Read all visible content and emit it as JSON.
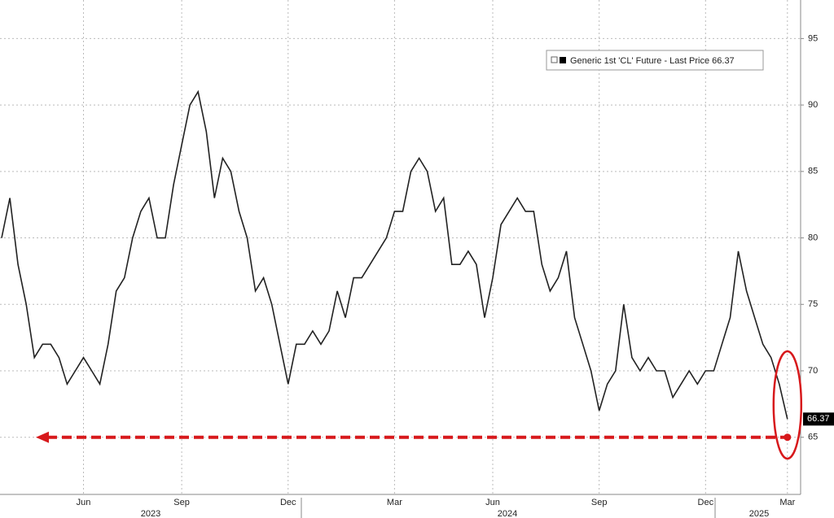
{
  "chart_data": {
    "type": "line",
    "categories": [
      null,
      null,
      null,
      null,
      null,
      null,
      null,
      null,
      null,
      null,
      "Jun",
      null,
      null,
      null,
      null,
      null,
      null,
      null,
      null,
      null,
      null,
      null,
      "Sep",
      null,
      null,
      null,
      null,
      null,
      null,
      null,
      null,
      null,
      null,
      null,
      null,
      "Dec",
      null,
      null,
      null,
      null,
      null,
      null,
      null,
      null,
      null,
      null,
      null,
      null,
      "Mar",
      null,
      null,
      null,
      null,
      null,
      null,
      null,
      null,
      null,
      null,
      null,
      "Jun",
      null,
      null,
      null,
      null,
      null,
      null,
      null,
      null,
      null,
      null,
      null,
      null,
      "Sep",
      null,
      null,
      null,
      null,
      null,
      null,
      null,
      null,
      null,
      null,
      null,
      null,
      "Dec",
      null,
      null,
      null,
      null,
      null,
      null,
      null,
      null,
      null,
      "Mar"
    ],
    "years": [
      "2023",
      "2024",
      "2025"
    ],
    "series": [
      {
        "name": "Generic 1st 'CL' Future - Last Price 66.37",
        "color": "#222222",
        "values": [
          80,
          83,
          78,
          75,
          71,
          72,
          72,
          71,
          69,
          70,
          71,
          70,
          69,
          72,
          76,
          77,
          80,
          82,
          83,
          80,
          80,
          84,
          87,
          90,
          91,
          88,
          83,
          86,
          85,
          82,
          80,
          76,
          77,
          75,
          72,
          69,
          72,
          72,
          73,
          72,
          73,
          76,
          74,
          77,
          77,
          78,
          79,
          80,
          82,
          82,
          85,
          86,
          85,
          82,
          83,
          78,
          78,
          79,
          78,
          74,
          77,
          81,
          82,
          83,
          82,
          82,
          78,
          76,
          77,
          79,
          74,
          72,
          70,
          67,
          69,
          70,
          75,
          71,
          70,
          71,
          70,
          70,
          68,
          69,
          70,
          69,
          70,
          70,
          72,
          74,
          79,
          76,
          74,
          72,
          71,
          69,
          66.37
        ]
      }
    ],
    "ylim": [
      60.7,
      97.9
    ],
    "yticks": [
      65,
      70,
      75,
      80,
      85,
      90,
      95
    ],
    "grid": true,
    "reference_line": {
      "value": 65,
      "color": "#d7191c"
    }
  }
}
